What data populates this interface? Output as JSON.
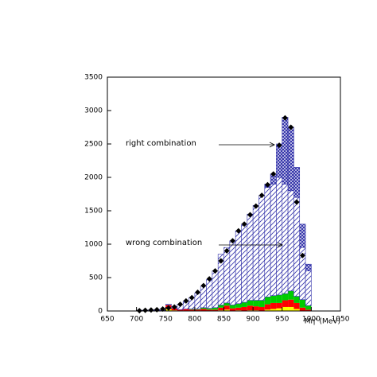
{
  "chart_data": {
    "type": "histogram",
    "xlabel": "Mη' (MeV)",
    "xlim": [
      650,
      1050
    ],
    "ylim": [
      0,
      3500
    ],
    "xticks": [
      650,
      700,
      750,
      800,
      850,
      900,
      950,
      1000,
      1050
    ],
    "yticks": [
      0,
      500,
      1000,
      1500,
      2000,
      2500,
      3000,
      3500
    ],
    "bins": [
      700,
      710,
      720,
      730,
      740,
      750,
      760,
      770,
      780,
      790,
      800,
      810,
      820,
      830,
      840,
      850,
      860,
      870,
      880,
      890,
      900,
      910,
      920,
      930,
      940,
      950,
      960,
      970,
      980,
      990,
      1000
    ],
    "stacked": true,
    "series": [
      {
        "color": "#ffff00",
        "fill": "solid",
        "values": [
          0,
          0,
          0,
          0,
          0,
          30,
          10,
          0,
          0,
          0,
          0,
          0,
          0,
          0,
          10,
          20,
          0,
          10,
          0,
          10,
          10,
          0,
          20,
          30,
          40,
          60,
          60,
          30,
          0,
          0
        ]
      },
      {
        "color": "#ff0000",
        "fill": "solid",
        "values": [
          5,
          5,
          5,
          10,
          10,
          60,
          30,
          20,
          30,
          20,
          20,
          30,
          20,
          20,
          40,
          60,
          40,
          40,
          60,
          70,
          60,
          60,
          80,
          90,
          80,
          100,
          110,
          90,
          50,
          20
        ]
      },
      {
        "color": "#00cc00",
        "fill": "solid",
        "values": [
          0,
          0,
          0,
          0,
          0,
          0,
          0,
          0,
          0,
          10,
          10,
          20,
          20,
          30,
          40,
          40,
          50,
          60,
          70,
          80,
          90,
          100,
          110,
          110,
          120,
          100,
          130,
          100,
          120,
          60
        ]
      },
      {
        "color": "#3333aa",
        "fill": "hatch",
        "values": [
          5,
          5,
          10,
          10,
          20,
          10,
          30,
          80,
          120,
          170,
          240,
          320,
          430,
          550,
          760,
          830,
          960,
          1090,
          1170,
          1290,
          1420,
          1570,
          1640,
          1670,
          1760,
          1640,
          1500,
          1480,
          780,
          520
        ]
      },
      {
        "color": "#3333aa",
        "fill": "crosshatch",
        "values": [
          0,
          0,
          0,
          0,
          0,
          0,
          0,
          0,
          0,
          0,
          0,
          0,
          0,
          0,
          0,
          0,
          0,
          0,
          0,
          0,
          0,
          0,
          50,
          150,
          500,
          1000,
          950,
          450,
          350,
          100
        ]
      }
    ],
    "points": {
      "color": "#000000",
      "x": [
        705,
        715,
        725,
        735,
        745,
        755,
        765,
        775,
        785,
        795,
        805,
        815,
        825,
        835,
        845,
        855,
        865,
        875,
        885,
        895,
        905,
        915,
        925,
        935,
        945,
        955,
        965,
        975,
        985
      ],
      "values": [
        5,
        10,
        15,
        20,
        30,
        45,
        60,
        100,
        150,
        200,
        280,
        380,
        480,
        600,
        750,
        900,
        1050,
        1200,
        1300,
        1440,
        1570,
        1730,
        1890,
        2050,
        2480,
        2890,
        2750,
        1630,
        830
      ]
    },
    "annotations": [
      {
        "text": "right combination"
      },
      {
        "text": "wrong combination"
      }
    ]
  }
}
